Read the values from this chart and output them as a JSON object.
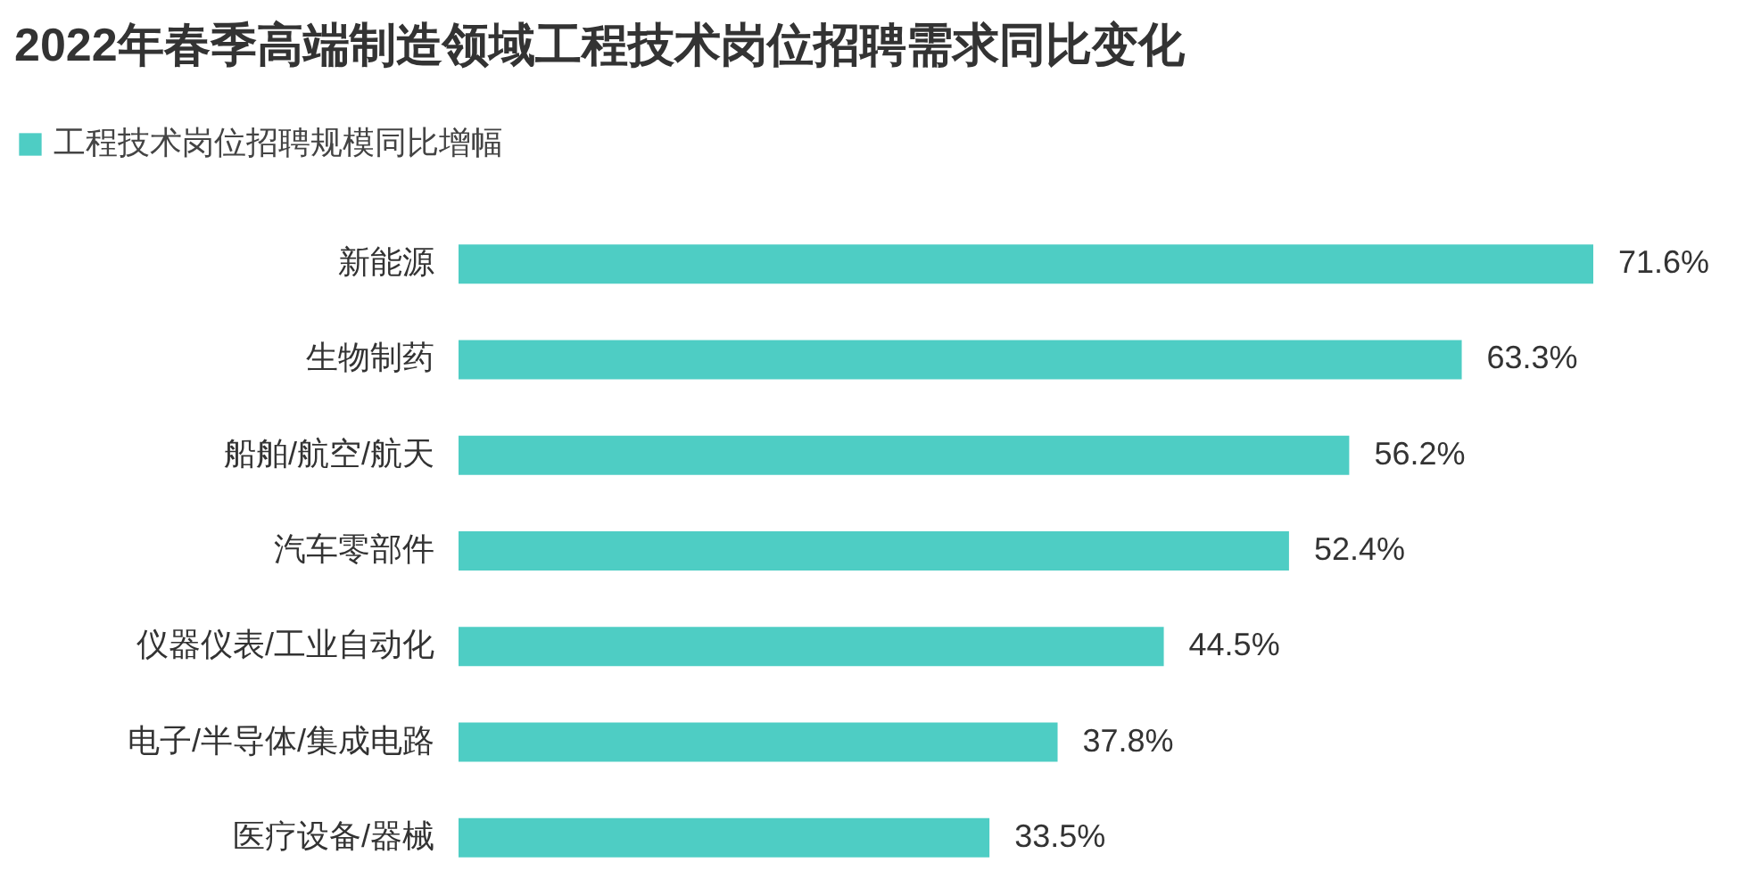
{
  "chart_data": {
    "type": "bar",
    "orientation": "horizontal",
    "title": "2022年春季高端制造领域工程技术岗位招聘需求同比变化",
    "legend": "top left",
    "categories": [
      "新能源",
      "生物制药",
      "船舶/航空/航天",
      "汽车零部件",
      "仪器仪表/工业自动化",
      "电子/半导体/集成电路",
      "医疗设备/器械"
    ],
    "series": [
      {
        "name": "工程技术岗位招聘规模同比增幅",
        "color": "#4ecdc4",
        "values": [
          71.6,
          63.3,
          56.2,
          52.4,
          44.5,
          37.8,
          33.5
        ],
        "value_labels": [
          "71.6%",
          "63.3%",
          "56.2%",
          "52.4%",
          "44.5%",
          "37.8%",
          "33.5%"
        ]
      }
    ]
  }
}
